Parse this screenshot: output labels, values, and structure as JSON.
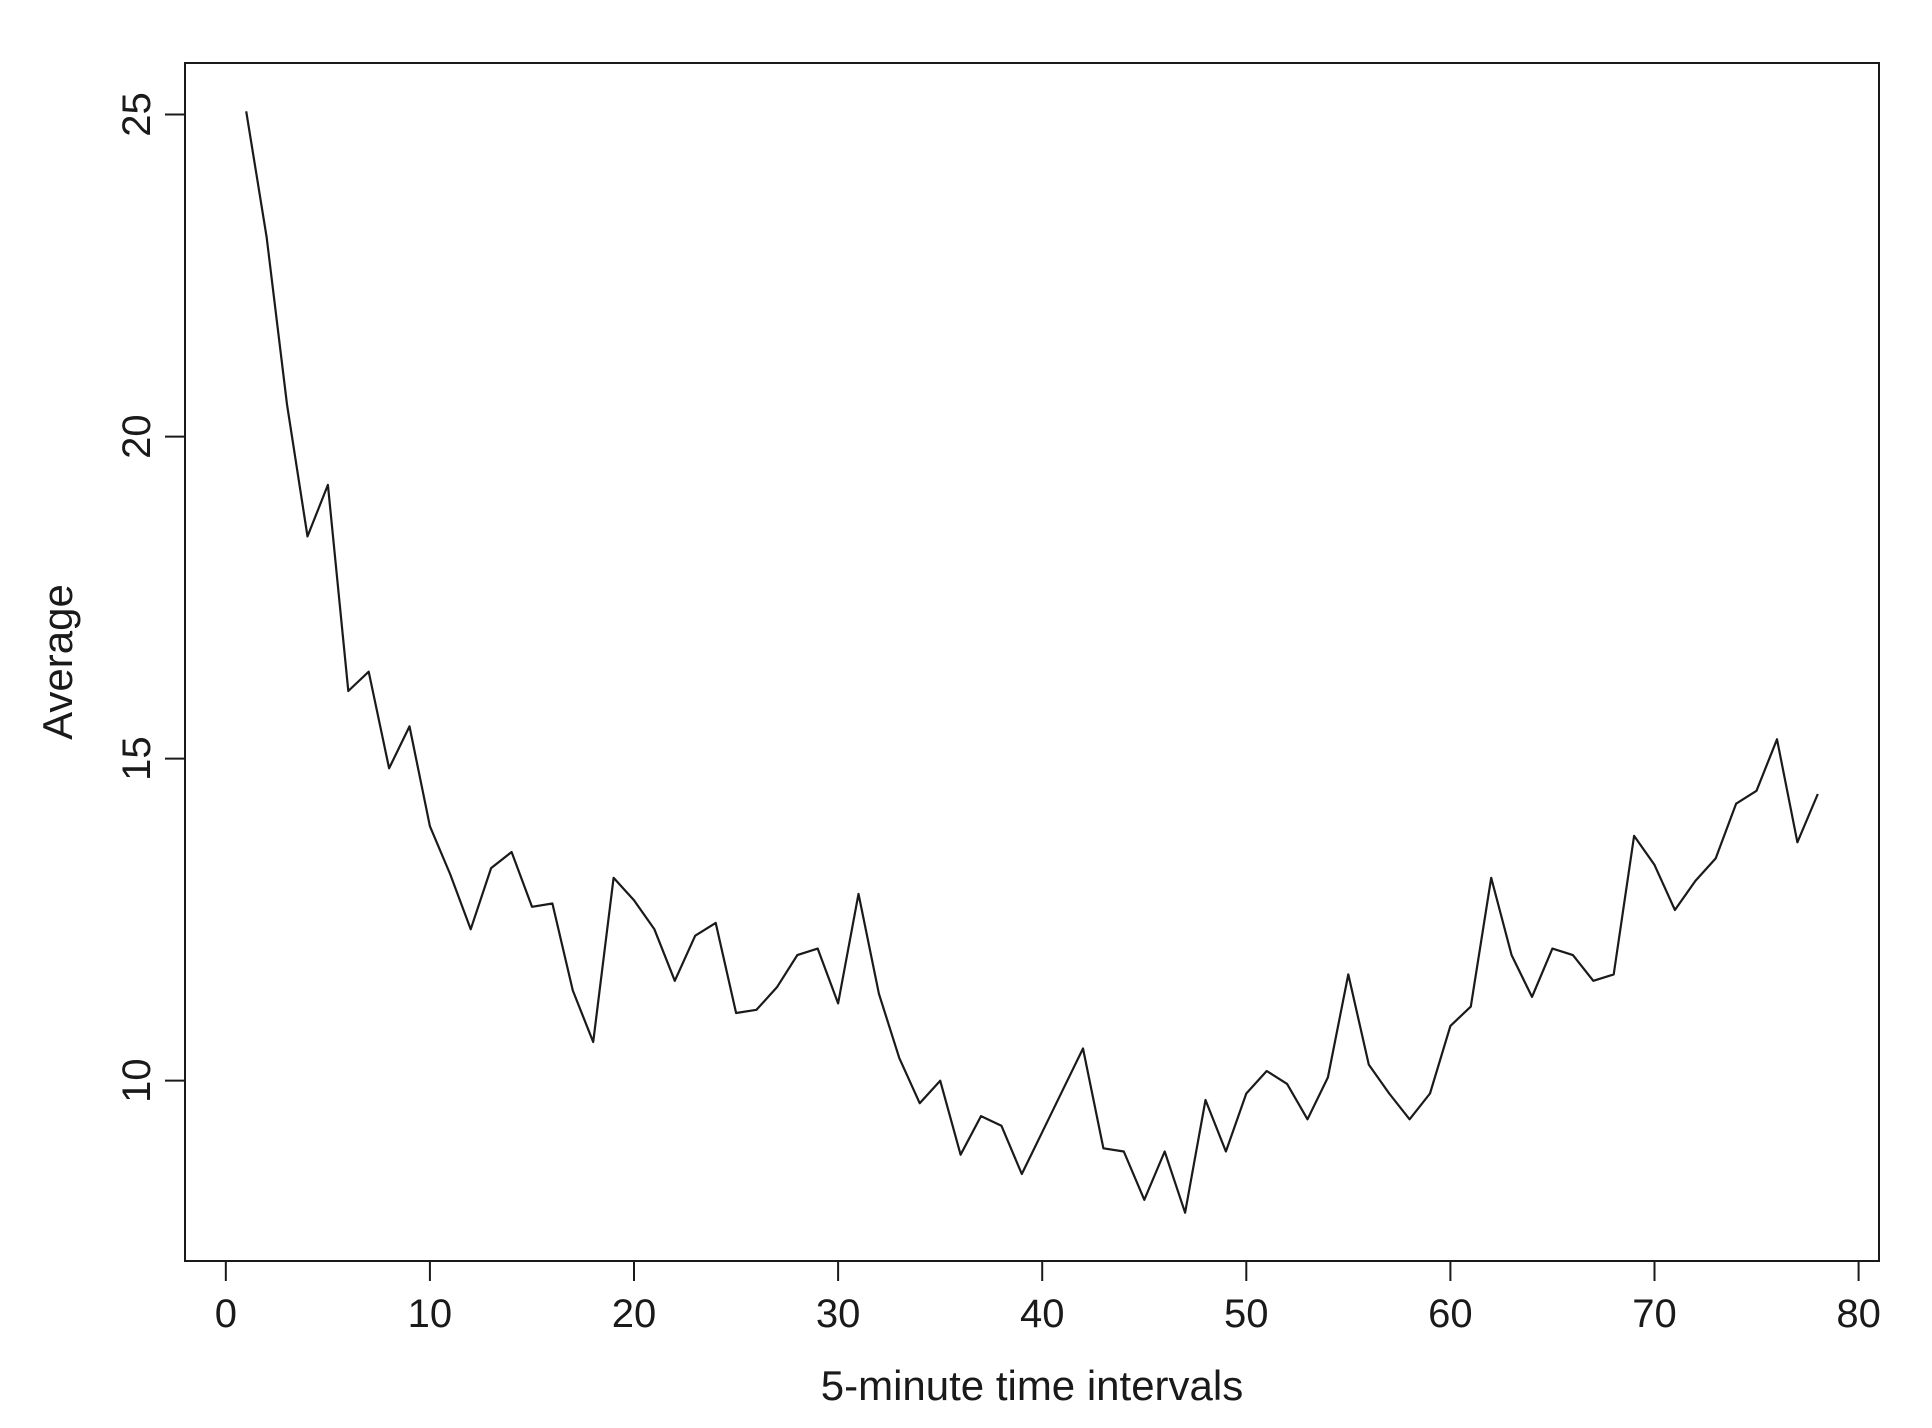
{
  "chart_data": {
    "type": "line",
    "title": "",
    "xlabel": "5-minute time intervals",
    "ylabel": "Average",
    "xlim": [
      -2,
      81
    ],
    "ylim": [
      7.2,
      25.8
    ],
    "xticks": [
      0,
      10,
      20,
      30,
      40,
      50,
      60,
      70,
      80
    ],
    "yticks": [
      10,
      15,
      20,
      25
    ],
    "grid": false,
    "legend": "none",
    "line_color": "#1a1a1a",
    "series": [
      {
        "x": [
          1,
          2,
          3,
          4,
          5,
          6,
          7,
          8,
          9,
          10,
          11,
          12,
          13,
          14,
          15,
          16,
          17,
          18,
          19,
          20,
          21,
          22,
          23,
          24,
          25,
          26,
          27,
          28,
          29,
          30,
          31,
          32,
          33,
          34,
          35,
          36,
          37,
          38,
          39,
          40,
          41,
          42,
          43,
          44,
          45,
          46,
          47,
          48,
          49,
          50,
          51,
          52,
          53,
          54,
          55,
          56,
          57,
          58,
          59,
          60,
          61,
          62,
          63,
          64,
          65,
          66,
          67,
          68,
          69,
          70,
          71,
          72,
          73,
          74,
          75,
          76,
          77,
          78
        ],
        "values": [
          25.05,
          23.1,
          20.5,
          18.45,
          19.25,
          16.05,
          16.35,
          14.85,
          15.5,
          13.95,
          13.2,
          12.35,
          13.3,
          13.55,
          12.7,
          12.75,
          11.4,
          10.6,
          13.15,
          12.8,
          12.35,
          11.55,
          12.25,
          12.45,
          11.05,
          11.1,
          11.45,
          11.95,
          12.05,
          11.2,
          12.9,
          11.35,
          10.35,
          9.65,
          10.0,
          8.85,
          9.45,
          9.3,
          8.55,
          9.2,
          9.85,
          10.5,
          8.95,
          8.9,
          8.15,
          8.9,
          7.95,
          9.7,
          8.9,
          9.8,
          10.15,
          9.95,
          9.4,
          10.05,
          11.65,
          10.25,
          9.8,
          9.4,
          9.8,
          10.85,
          11.15,
          13.15,
          11.95,
          11.3,
          12.05,
          11.95,
          11.55,
          11.65,
          13.8,
          13.35,
          12.65,
          13.1,
          13.45,
          14.3,
          14.5,
          15.3,
          13.7,
          14.45
        ]
      }
    ]
  }
}
